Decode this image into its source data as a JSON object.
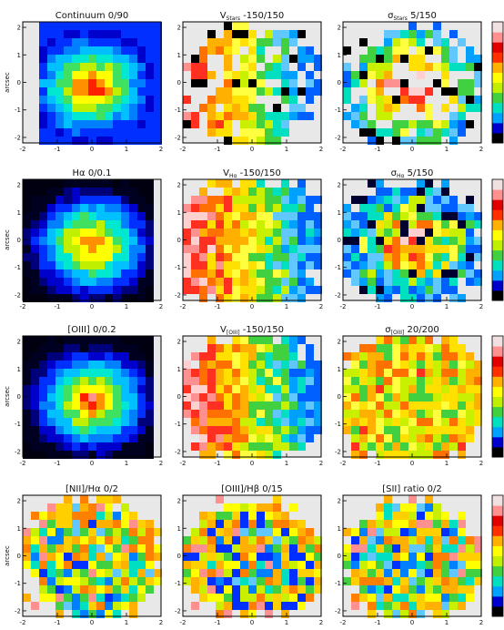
{
  "figure": {
    "rows": [
      {
        "panels": [
          {
            "title": "Continuum    0/90",
            "type": "continuum"
          },
          {
            "title_main": "V",
            "title_sub": "Stars",
            "title_rest": "  -150/150",
            "type": "velocity"
          },
          {
            "title_main": "σ",
            "title_sub": "Stars",
            "title_rest": "   5/150",
            "type": "dispersion"
          }
        ]
      },
      {
        "panels": [
          {
            "title": "Hα    0/0.1",
            "type": "continuum"
          },
          {
            "title_main": "V",
            "title_sub": "Hα",
            "title_rest": "  -150/150",
            "type": "velocity"
          },
          {
            "title_main": "σ",
            "title_sub": "Hα",
            "title_rest": "   5/150",
            "type": "dispersion"
          }
        ]
      },
      {
        "panels": [
          {
            "title": "[OIII]    0/0.2",
            "type": "continuum"
          },
          {
            "title_main": "V",
            "title_sub": "[OIII]",
            "title_rest": "  -150/150",
            "type": "velocity"
          },
          {
            "title_main": "σ",
            "title_sub": "[OIII]",
            "title_rest": "   20/200",
            "type": "dispersion"
          }
        ]
      },
      {
        "panels": [
          {
            "title": "[NII]/Hα   0/2",
            "type": "ratio"
          },
          {
            "title": "[OIII]/Hβ    0/15",
            "type": "ratio"
          },
          {
            "title": "[SII] ratio 0/2",
            "type": "ratio"
          }
        ]
      }
    ],
    "axes": {
      "x_ticks": [
        "-2",
        "-1",
        "0",
        "1",
        "2"
      ],
      "y_ticks": [
        "-2",
        "-1",
        "0",
        "1",
        "2"
      ],
      "xlabel": "arcsec",
      "ylabel": "arcsec"
    },
    "colorbar_colors": [
      "#000000",
      "#0000cc",
      "#00a0ff",
      "#00e0c0",
      "#40d040",
      "#c0f000",
      "#ffff00",
      "#ffb000",
      "#ff3000",
      "#e00000",
      "#ff9090",
      "#f0e0e0"
    ]
  }
}
